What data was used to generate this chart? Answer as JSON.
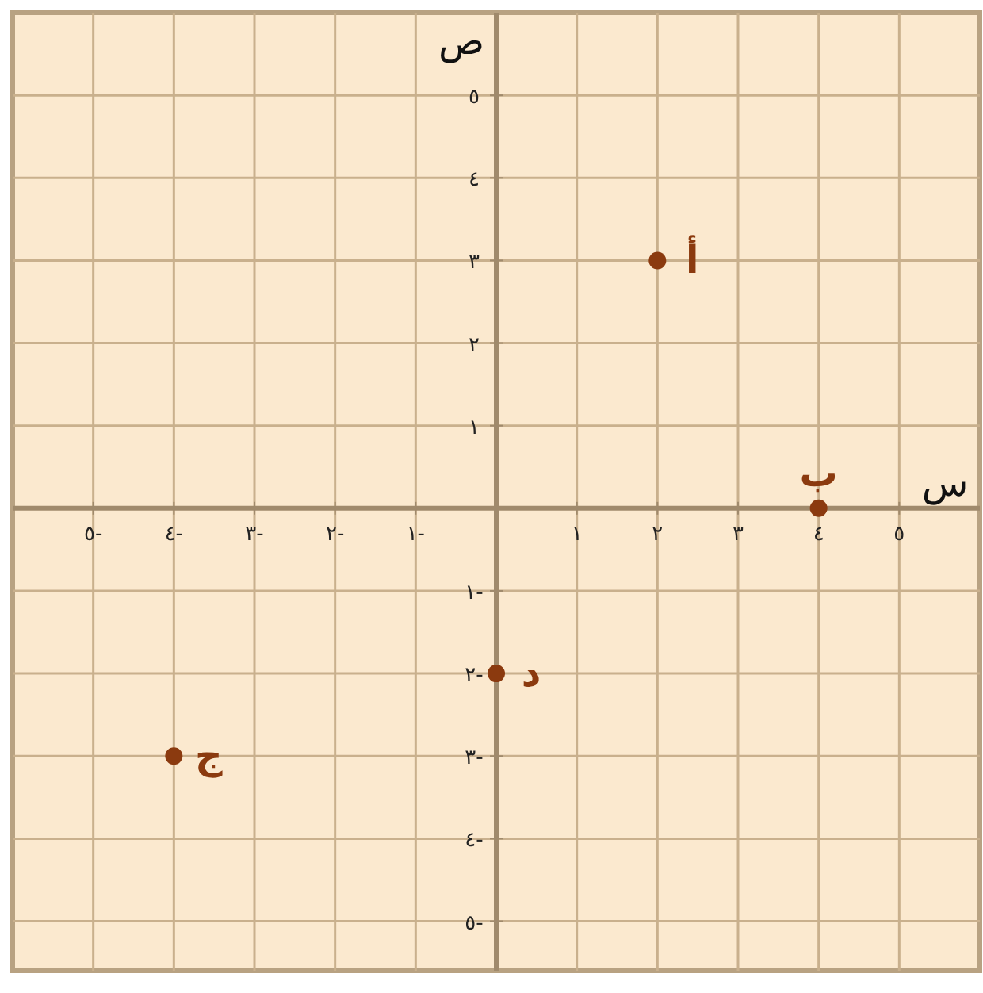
{
  "chart_data": {
    "type": "scatter",
    "xlabel": "س",
    "ylabel": "ص",
    "xlim": [
      -6,
      6
    ],
    "ylim": [
      -5.6,
      6
    ],
    "xticks": [
      {
        "value": -5,
        "label": "٥-"
      },
      {
        "value": -4,
        "label": "٤-"
      },
      {
        "value": -3,
        "label": "٣-"
      },
      {
        "value": -2,
        "label": "٢-"
      },
      {
        "value": -1,
        "label": "١-"
      },
      {
        "value": 1,
        "label": "١"
      },
      {
        "value": 2,
        "label": "٢"
      },
      {
        "value": 3,
        "label": "٣"
      },
      {
        "value": 4,
        "label": "٤"
      },
      {
        "value": 5,
        "label": "٥"
      }
    ],
    "yticks": [
      {
        "value": -5,
        "label": "٥-"
      },
      {
        "value": -4,
        "label": "٤-"
      },
      {
        "value": -3,
        "label": "٣-"
      },
      {
        "value": -2,
        "label": "٢-"
      },
      {
        "value": -1,
        "label": "١-"
      },
      {
        "value": 1,
        "label": "١"
      },
      {
        "value": 2,
        "label": "٢"
      },
      {
        "value": 3,
        "label": "٣"
      },
      {
        "value": 4,
        "label": "٤"
      },
      {
        "value": 5,
        "label": "٥"
      }
    ],
    "grid": true,
    "marker": "circle",
    "series": [
      {
        "color": "#8b3a0f",
        "x": [
          2,
          4,
          -4,
          0
        ],
        "values": [
          3,
          0,
          -3,
          -2
        ]
      }
    ],
    "annotations": [
      {
        "text": "أ",
        "x": 2,
        "y": 3
      },
      {
        "text": "ب",
        "x": 4,
        "y": 0
      },
      {
        "text": "ج",
        "x": -4,
        "y": -3
      },
      {
        "text": "د",
        "x": 0,
        "y": -2
      }
    ]
  }
}
